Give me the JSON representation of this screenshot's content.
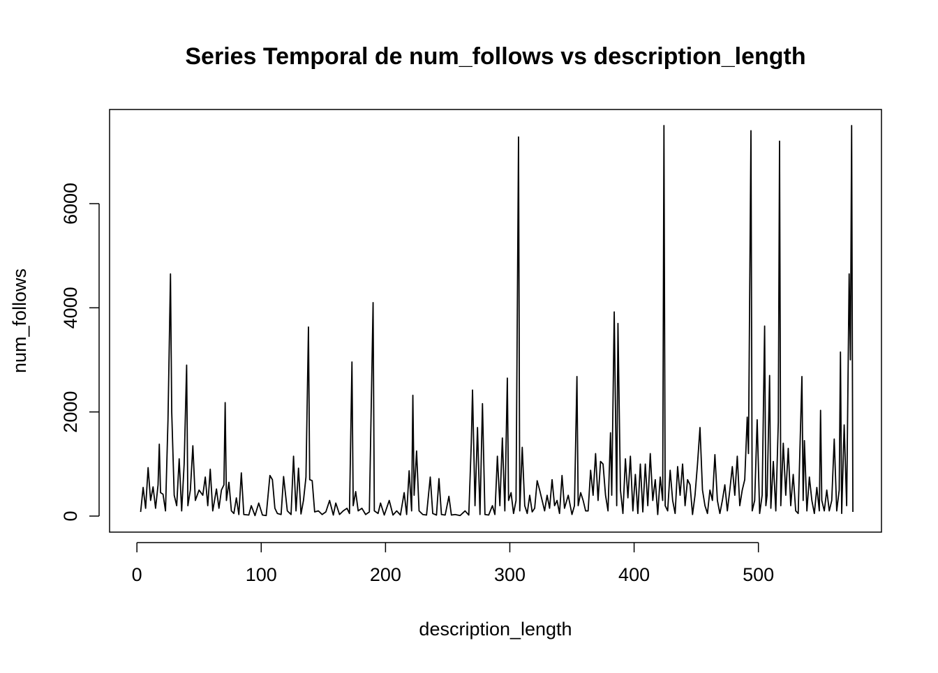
{
  "chart_data": {
    "type": "line",
    "title": "Series Temporal de num_follows vs description_length",
    "x_label": "description_length",
    "y_label": "num_follows",
    "x": [
      3,
      5,
      7,
      9,
      11,
      13,
      15,
      17,
      18,
      19,
      21,
      23,
      25,
      27,
      28,
      30,
      32,
      34,
      36,
      38,
      40,
      41,
      43,
      45,
      47,
      50,
      53,
      55,
      57,
      59,
      61,
      64,
      66,
      68,
      70,
      71,
      72,
      74,
      76,
      78,
      80,
      82,
      84,
      86,
      90,
      92,
      95,
      98,
      101,
      104,
      107,
      109,
      111,
      113,
      116,
      118,
      121,
      124,
      126,
      128,
      130,
      132,
      134,
      136,
      138,
      139,
      141,
      143,
      146,
      149,
      152,
      155,
      158,
      160,
      163,
      166,
      169,
      171,
      173,
      174,
      176,
      178,
      181,
      184,
      187,
      190,
      191,
      194,
      196,
      199,
      203,
      206,
      209,
      212,
      215,
      217,
      219,
      221,
      222,
      223,
      225,
      227,
      230,
      233,
      236,
      238,
      241,
      243,
      245,
      248,
      251,
      253,
      256,
      260,
      264,
      267,
      269,
      270,
      272,
      274,
      276,
      278,
      280,
      283,
      286,
      288,
      290,
      292,
      294,
      296,
      298,
      299,
      301,
      303,
      305,
      307,
      308,
      310,
      312,
      314,
      316,
      318,
      320,
      322,
      324,
      326,
      328,
      330,
      332,
      334,
      336,
      338,
      340,
      342,
      344,
      347,
      350,
      352,
      354,
      355,
      357,
      359,
      361,
      363,
      365,
      367,
      369,
      371,
      373,
      375,
      377,
      379,
      381,
      382,
      384,
      386,
      387,
      389,
      391,
      393,
      395,
      397,
      399,
      401,
      403,
      405,
      407,
      409,
      411,
      413,
      415,
      417,
      419,
      421,
      423,
      424,
      425,
      427,
      429,
      431,
      433,
      435,
      437,
      439,
      441,
      443,
      445,
      447,
      449,
      451,
      453,
      455,
      457,
      459,
      461,
      463,
      465,
      467,
      469,
      471,
      473,
      475,
      477,
      479,
      481,
      483,
      485,
      487,
      489,
      491,
      492,
      494,
      495,
      497,
      499,
      501,
      503,
      505,
      506,
      507,
      509,
      510,
      512,
      514,
      516,
      517,
      518,
      520,
      522,
      524,
      526,
      528,
      530,
      532,
      535,
      536,
      537,
      539,
      541,
      543,
      545,
      547,
      549,
      550,
      551,
      553,
      555,
      557,
      559,
      561,
      563,
      565,
      566,
      567,
      569,
      571,
      573,
      574,
      575,
      576
    ],
    "series": [
      {
        "name": "num_follows",
        "color": "#000000",
        "values": [
          80,
          550,
          150,
          930,
          300,
          560,
          150,
          600,
          1380,
          450,
          420,
          100,
          1850,
          4650,
          2000,
          400,
          200,
          1100,
          100,
          1000,
          2900,
          200,
          500,
          1350,
          300,
          500,
          400,
          750,
          200,
          900,
          100,
          520,
          150,
          500,
          600,
          2180,
          300,
          650,
          100,
          50,
          350,
          30,
          830,
          30,
          20,
          200,
          10,
          250,
          20,
          10,
          780,
          700,
          150,
          50,
          30,
          760,
          100,
          30,
          1150,
          100,
          920,
          40,
          300,
          750,
          3630,
          700,
          680,
          80,
          100,
          30,
          80,
          300,
          20,
          250,
          30,
          100,
          150,
          50,
          2960,
          200,
          470,
          100,
          150,
          30,
          80,
          4100,
          100,
          50,
          250,
          20,
          300,
          20,
          100,
          20,
          450,
          30,
          870,
          100,
          2320,
          400,
          1250,
          100,
          30,
          20,
          750,
          50,
          20,
          720,
          30,
          20,
          380,
          20,
          30,
          10,
          100,
          20,
          1400,
          2420,
          200,
          1700,
          30,
          2160,
          30,
          20,
          200,
          30,
          1150,
          200,
          1500,
          100,
          2650,
          300,
          450,
          50,
          300,
          7280,
          100,
          1320,
          200,
          50,
          400,
          80,
          150,
          680,
          500,
          300,
          100,
          400,
          150,
          700,
          200,
          300,
          50,
          780,
          150,
          400,
          30,
          200,
          2680,
          200,
          450,
          300,
          100,
          100,
          880,
          400,
          1200,
          300,
          1050,
          1000,
          400,
          100,
          1600,
          400,
          3920,
          200,
          3700,
          500,
          50,
          1100,
          350,
          1150,
          100,
          800,
          50,
          1000,
          80,
          1000,
          200,
          1200,
          300,
          700,
          30,
          750,
          300,
          7500,
          200,
          100,
          880,
          300,
          50,
          950,
          400,
          1000,
          200,
          700,
          600,
          30,
          400,
          1000,
          1700,
          500,
          200,
          50,
          500,
          300,
          1180,
          300,
          50,
          300,
          600,
          100,
          500,
          950,
          400,
          1150,
          200,
          500,
          700,
          1900,
          1200,
          7400,
          100,
          300,
          1850,
          50,
          400,
          3650,
          200,
          400,
          2700,
          150,
          1050,
          100,
          1800,
          7200,
          200,
          1400,
          400,
          1300,
          200,
          800,
          100,
          50,
          2680,
          300,
          1450,
          100,
          750,
          300,
          50,
          550,
          100,
          2030,
          300,
          100,
          500,
          100,
          300,
          1480,
          100,
          500,
          3150,
          50,
          1750,
          200,
          4650,
          3000,
          7500,
          80
        ]
      }
    ],
    "xlim": [
      -22,
      599
    ],
    "ylim": [
      -308,
      7808
    ],
    "xticks": [
      0,
      100,
      200,
      300,
      400,
      500
    ],
    "yticks": [
      0,
      2000,
      4000,
      6000
    ]
  }
}
